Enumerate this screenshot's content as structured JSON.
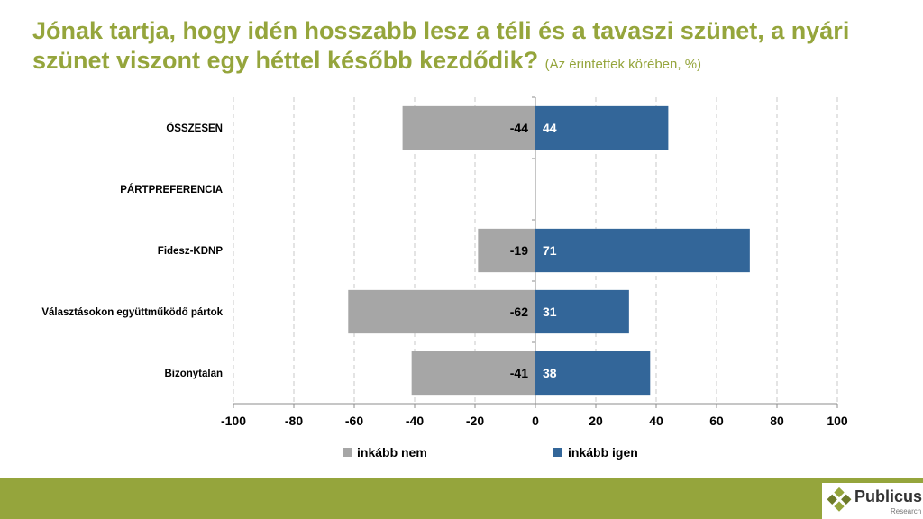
{
  "title_main": "Jónak tartja, hogy idén hosszabb lesz a téli és a tavaszi szünet, a nyári szünet viszont egy héttel később kezdődik?",
  "title_sub": "(Az érintettek körében, %)",
  "logo": {
    "name": "Publicus",
    "tagline": "Research"
  },
  "chart_data": {
    "type": "bar",
    "orientation": "horizontal",
    "stacked": "diverging",
    "categories": [
      "ÖSSZESEN",
      "PÁRTPREFERENCIA",
      "Fidesz-KDNP",
      "Választásokon együttműködő pártok",
      "Bizonytalan"
    ],
    "series": [
      {
        "name": "inkább nem",
        "values": [
          -44,
          null,
          -19,
          -62,
          -41
        ],
        "color": "#a6a6a6"
      },
      {
        "name": "inkább igen",
        "values": [
          44,
          null,
          71,
          31,
          38
        ],
        "color": "#336699"
      }
    ],
    "xlim": [
      -100,
      100
    ],
    "xticks": [
      -100,
      -80,
      -60,
      -40,
      -20,
      0,
      20,
      40,
      60,
      80,
      100
    ],
    "grid": "vertical dashed",
    "legend_position": "bottom"
  },
  "colors": {
    "accent": "#95a53c",
    "positive": "#336699",
    "negative": "#a6a6a6"
  }
}
